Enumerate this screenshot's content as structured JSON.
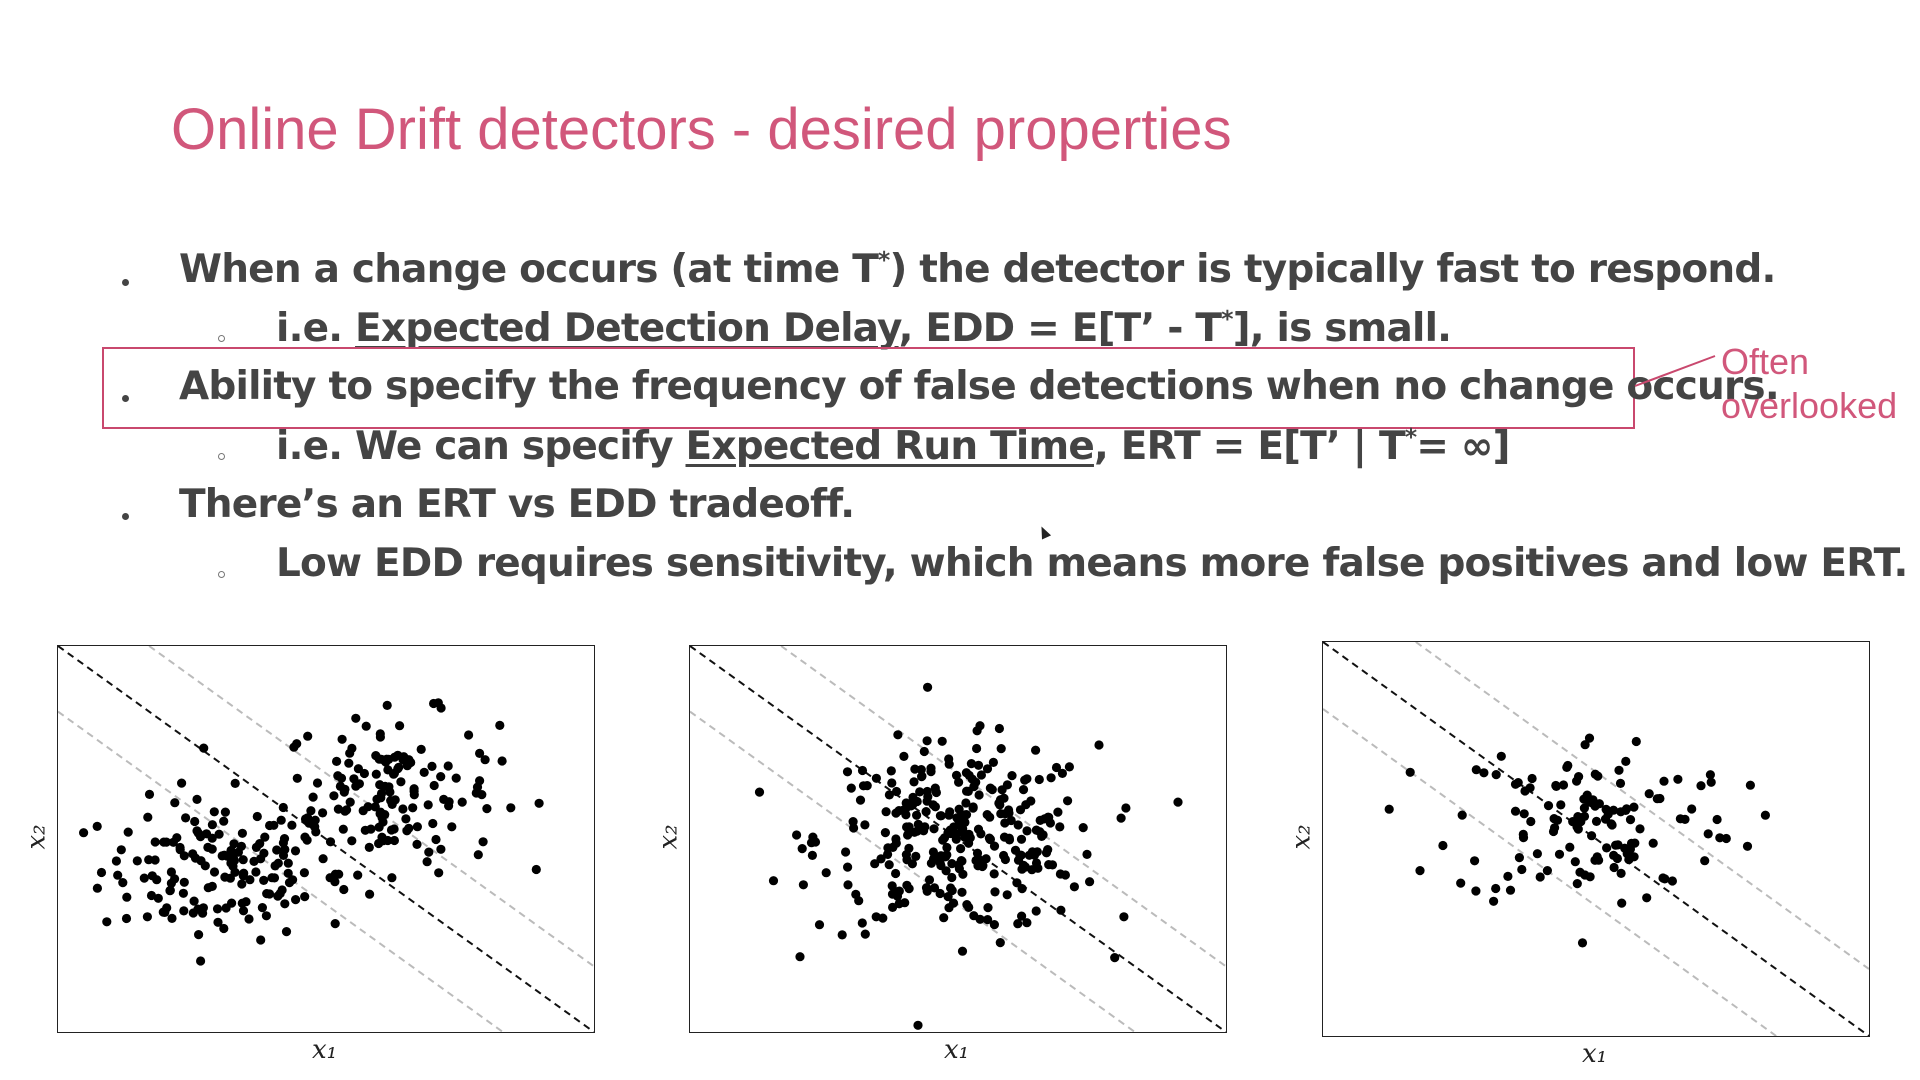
{
  "slide": {
    "title": "Online Drift detectors - desired properties",
    "accent_color": "#d1577b",
    "text_color": "#444444"
  },
  "bullets": {
    "b1": {
      "pre": "When a change occurs (at time T",
      "sup": "*",
      "post": ") the detector is typically fast to respond."
    },
    "s1": {
      "pre": "i.e. ",
      "underlined": "Expected Detection Delay",
      "mid": ",  EDD = E[T’ - T",
      "sup": "*",
      "post": "],  is small."
    },
    "b2": {
      "text": "Ability to specify the frequency of false detections when no change occurs."
    },
    "s2": {
      "pre": "i.e. We can specify ",
      "underlined": "Expected Run Time",
      "mid": ",  ERT = E[T’ | T",
      "sup": "*",
      "post": "= ∞]"
    },
    "b3": {
      "text": "There’s an ERT vs EDD tradeoff."
    },
    "s3": {
      "text": "Low EDD requires sensitivity, which means more false positives and low ERT."
    }
  },
  "annotation": {
    "line1": "Often",
    "line2": "overlooked",
    "color": "#c9486e"
  },
  "chart_data": [
    {
      "type": "scatter",
      "xlabel": "x₁",
      "ylabel": "x₂",
      "grid": false,
      "boundary_lines": {
        "center_style": "black dashed",
        "band_style": "gray dashed"
      },
      "clusters": [
        {
          "cx": 0.3,
          "cy": 0.42,
          "sx": 0.11,
          "sy": 0.09,
          "n": 150
        },
        {
          "cx": 0.62,
          "cy": 0.62,
          "sx": 0.1,
          "sy": 0.1,
          "n": 150
        }
      ]
    },
    {
      "type": "scatter",
      "xlabel": "x₁",
      "ylabel": "x₂",
      "grid": false,
      "boundary_lines": {
        "center_style": "black dashed",
        "band_style": "gray dashed"
      },
      "clusters": [
        {
          "cx": 0.5,
          "cy": 0.5,
          "sx": 0.13,
          "sy": 0.12,
          "n": 300
        }
      ]
    },
    {
      "type": "scatter",
      "xlabel": "x₁",
      "ylabel": "x₂",
      "grid": false,
      "boundary_lines": {
        "center_style": "black dashed",
        "band_style": "gray dashed"
      },
      "clusters": [
        {
          "cx": 0.5,
          "cy": 0.55,
          "sx": 0.13,
          "sy": 0.11,
          "n": 130
        }
      ]
    }
  ]
}
